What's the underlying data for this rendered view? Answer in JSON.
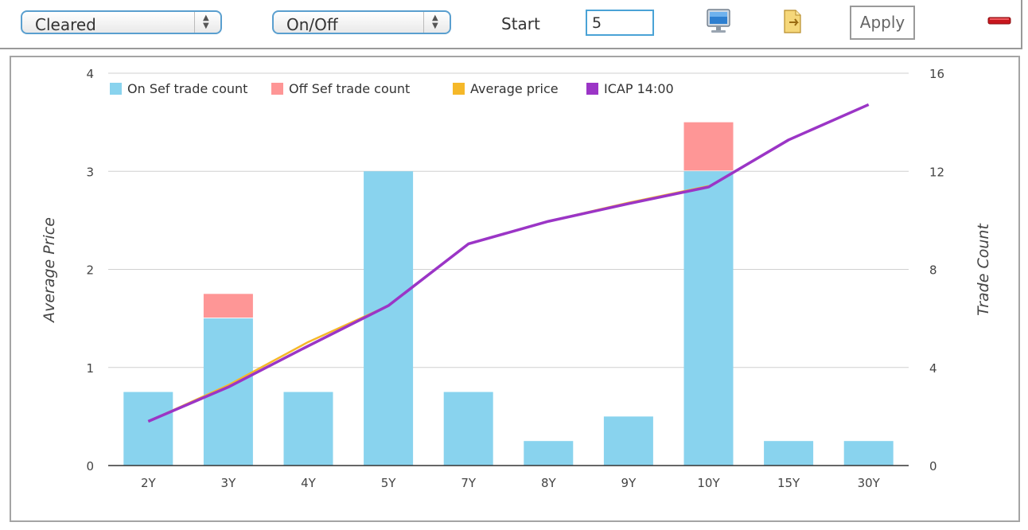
{
  "toolbar": {
    "clearing_select": {
      "value": "Cleared"
    },
    "onoff_select": {
      "value": "On/Off"
    },
    "start_label": "Start",
    "start_value": "5",
    "apply_label": "Apply",
    "icons": [
      "monitor-icon",
      "export-icon",
      "remove-icon"
    ]
  },
  "chart_data": {
    "type": "bar",
    "categories": [
      "2Y",
      "3Y",
      "4Y",
      "5Y",
      "7Y",
      "8Y",
      "9Y",
      "10Y",
      "15Y",
      "30Y"
    ],
    "series": [
      {
        "name": "On Sef trade count",
        "type": "bar",
        "axis": "right",
        "color": "#89d3ee",
        "values": [
          3,
          6,
          3,
          12,
          3,
          1,
          2,
          12,
          1,
          1
        ]
      },
      {
        "name": "Off Sef trade count",
        "type": "bar",
        "axis": "right",
        "color": "#fe9696",
        "values": [
          0,
          1,
          0,
          0,
          0,
          0,
          0,
          2,
          0,
          0
        ]
      },
      {
        "name": "Average price",
        "type": "line",
        "axis": "left",
        "color": "#f5b829",
        "values": [
          0.45,
          0.82,
          1.26,
          1.63,
          2.26,
          2.49,
          2.68,
          2.85,
          null,
          null
        ]
      },
      {
        "name": "ICAP 14:00",
        "type": "line",
        "axis": "left",
        "color": "#9b35c6",
        "values": [
          0.45,
          0.8,
          1.22,
          1.63,
          2.26,
          2.49,
          2.67,
          2.84,
          3.32,
          3.68
        ]
      }
    ],
    "ylabel_left": "Average Price",
    "ylabel_right": "Trade Count",
    "ylim_left": [
      0,
      4
    ],
    "ylim_right": [
      0,
      16
    ],
    "yticks_left": [
      "0",
      "1",
      "2",
      "3",
      "4"
    ],
    "yticks_right": [
      "0",
      "4",
      "8",
      "12",
      "16"
    ],
    "grid": true,
    "legend": "top-left"
  }
}
